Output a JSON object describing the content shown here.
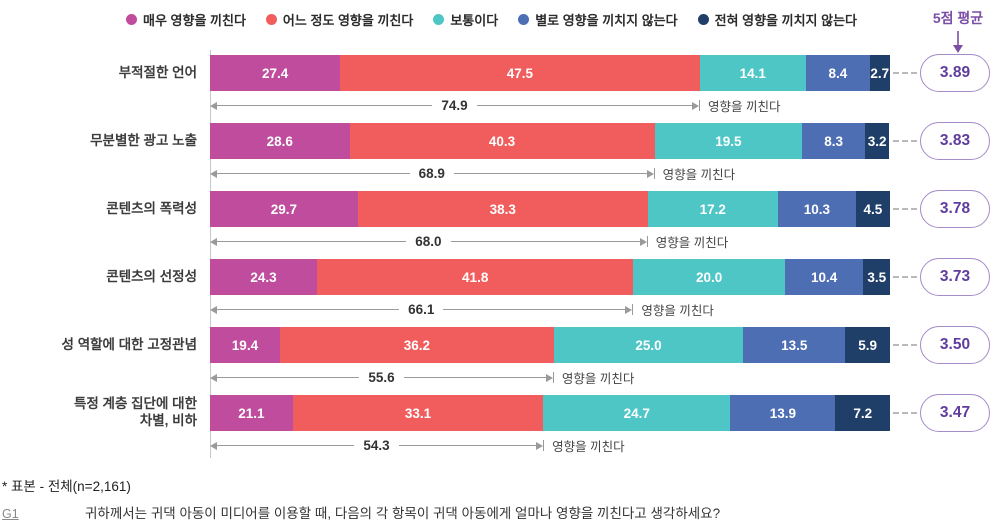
{
  "legend": {
    "avg_header": "5점 평균",
    "avg_color": "#7b4fa5"
  },
  "chart_data": {
    "type": "bar",
    "stacked": true,
    "orientation": "horizontal",
    "unit": "%",
    "categories": [
      "부적절한 언어",
      "무분별한 광고 노출",
      "콘텐츠의 폭력성",
      "콘텐츠의 선정성",
      "성 역할에 대한 고정관념",
      "특정 계층 집단에 대한\n차별, 비하"
    ],
    "series": [
      {
        "name": "매우 영향을 끼친다",
        "color": "#bf4c9d",
        "values": [
          27.4,
          28.6,
          29.7,
          24.3,
          19.4,
          21.1
        ]
      },
      {
        "name": "어느 정도 영향을 끼친다",
        "color": "#f15d5d",
        "values": [
          47.5,
          40.3,
          38.3,
          41.8,
          36.2,
          33.1
        ]
      },
      {
        "name": "보통이다",
        "color": "#4fc6c6",
        "values": [
          14.1,
          19.5,
          17.2,
          20.0,
          25.0,
          24.7
        ]
      },
      {
        "name": "별로 영향을 끼치지 않는다",
        "color": "#4e6eb4",
        "values": [
          8.4,
          8.3,
          10.3,
          10.4,
          13.5,
          13.9
        ]
      },
      {
        "name": "전혀 영향을 끼치지 않는다",
        "color": "#1f3e68",
        "values": [
          2.7,
          3.2,
          4.5,
          3.5,
          5.9,
          7.2
        ]
      }
    ],
    "influence_sum": {
      "label": "영향을 끼친다",
      "values": [
        74.9,
        68.9,
        68.0,
        66.1,
        55.6,
        54.3
      ]
    },
    "averages": [
      3.89,
      3.83,
      3.78,
      3.73,
      3.5,
      3.47
    ]
  },
  "footer": {
    "note": "* 표본 - 전체(n=2,161)",
    "code": "G1",
    "question": "귀하께서는 귀댁 아동이 미디어를 이용할 때, 다음의 각 항목이 귀댁 아동에게 얼마나 영향을 끼친다고 생각하세요?"
  }
}
